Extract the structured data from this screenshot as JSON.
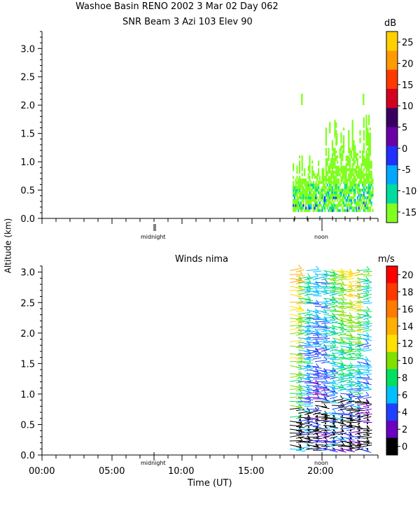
{
  "title_line1": "Washoe Basin RENO 2002    3 Mar 02 Day 062",
  "title_line2": "SNR Beam 3 Azi 103 Elev 90",
  "ylabel": "Altitude (km)",
  "xlabel": "Time (UT)",
  "markers": {
    "midnight": "midnight",
    "noon": "noon"
  },
  "x_ticks": [
    "00:00",
    "05:00",
    "10:00",
    "15:00",
    "20:00"
  ],
  "chart_data": [
    {
      "type": "heatmap",
      "title": "SNR Beam 3 Azi 103 Elev 90",
      "ylim": [
        0,
        3.3
      ],
      "y_ticks": [
        "0.0",
        "0.5",
        "1.0",
        "1.5",
        "2.0",
        "2.5",
        "3.0"
      ],
      "colorbar": {
        "unit": "dB",
        "ticks": [
          "25",
          "20",
          "15",
          "10",
          "5",
          "0",
          "-5",
          "-10",
          "-15"
        ],
        "colors": [
          "#ffd000",
          "#ff9a00",
          "#ff3a00",
          "#d40020",
          "#3a0060",
          "#6a00a8",
          "#2030ff",
          "#00a8ff",
          "#00dca0",
          "#80ff20"
        ]
      },
      "data_window_hours": [
        17.9,
        23.6
      ],
      "dominant_range_db": [
        -15,
        -5
      ]
    },
    {
      "type": "scatter",
      "title": "Winds nima",
      "ylim": [
        0,
        3.1
      ],
      "xlim_hours": [
        0,
        24
      ],
      "y_ticks": [
        "0.0",
        "0.5",
        "1.0",
        "1.5",
        "2.0",
        "2.5",
        "3.0"
      ],
      "colorbar": {
        "unit": "m/s",
        "ticks": [
          "20",
          "18",
          "16",
          "14",
          "12",
          "10",
          "8",
          "6",
          "4",
          "2",
          "0"
        ],
        "colors": [
          "#ff0000",
          "#ff3a00",
          "#ff7a00",
          "#ffb000",
          "#ffe000",
          "#80e000",
          "#00e060",
          "#00c0ff",
          "#2040ff",
          "#6a00c0",
          "#000000"
        ]
      },
      "data_window_hours": [
        17.8,
        23.3
      ],
      "profiles": [
        {
          "t": 17.9,
          "speed_low": 6,
          "speed_high": 14
        },
        {
          "t": 18.5,
          "speed_low": 4,
          "speed_high": 8
        },
        {
          "t": 19.1,
          "speed_low": 2,
          "speed_high": 6
        },
        {
          "t": 19.7,
          "speed_low": 2,
          "speed_high": 6
        },
        {
          "t": 20.3,
          "speed_low": 4,
          "speed_high": 8
        },
        {
          "t": 20.9,
          "speed_low": 4,
          "speed_high": 10
        },
        {
          "t": 21.5,
          "speed_low": 2,
          "speed_high": 12
        },
        {
          "t": 22.1,
          "speed_low": 2,
          "speed_high": 14
        },
        {
          "t": 22.7,
          "speed_low": 2,
          "speed_high": 8
        }
      ]
    }
  ]
}
